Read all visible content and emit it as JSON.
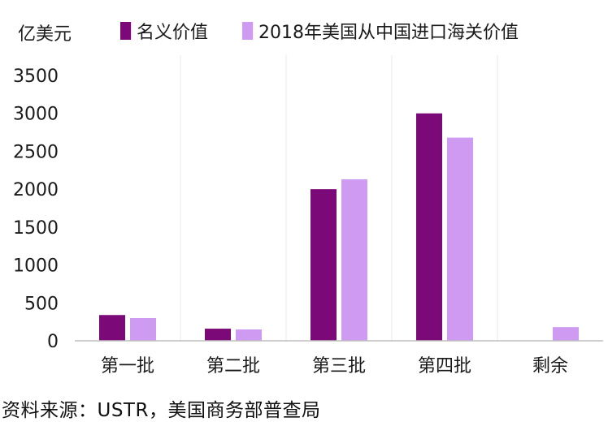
{
  "chart_data": {
    "type": "bar",
    "unit_label": "亿美元",
    "categories": [
      "第一批",
      "第二批",
      "第三批",
      "第四批",
      "剩余"
    ],
    "series": [
      {
        "name": "名义价值",
        "color": "#7b0a78",
        "values": [
          340,
          160,
          2000,
          3000,
          null
        ]
      },
      {
        "name": "2018年美国从中国进口海关价值",
        "color": "#cf9af1",
        "values": [
          300,
          150,
          2130,
          2680,
          180
        ]
      }
    ],
    "ylim": [
      0,
      3500
    ],
    "yticks": [
      0,
      500,
      1000,
      1500,
      2000,
      2500,
      3000,
      3500
    ],
    "grid": true,
    "legend_position": "top"
  },
  "source": "资料来源：USTR，美国商务部普查局"
}
